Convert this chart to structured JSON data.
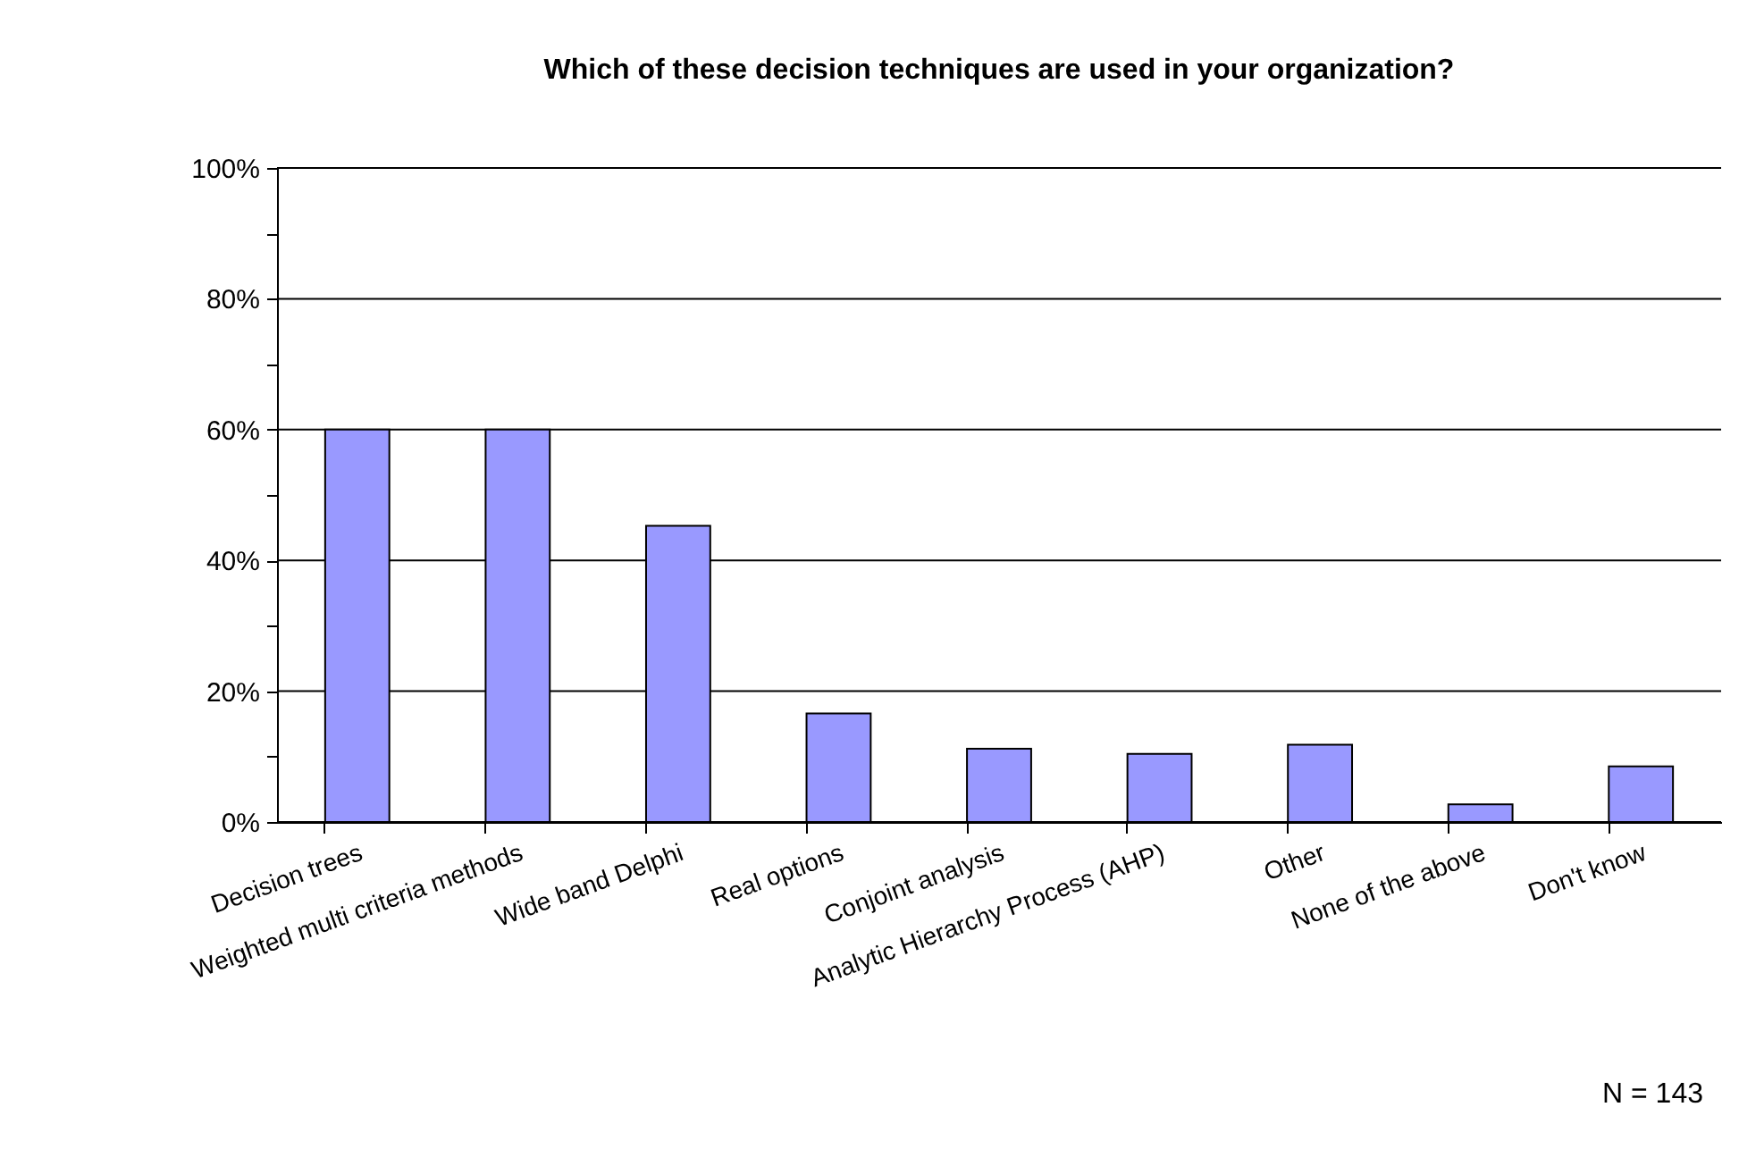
{
  "chart_data": {
    "type": "bar",
    "title": "Which of these decision techniques are used in your organization?",
    "categories": [
      "Decision trees",
      "Weighted multi criteria methods",
      "Wide band Delphi",
      "Real options",
      "Conjoint analysis",
      "Analytic Hierarchy Process (AHP)",
      "Other",
      "None of the above",
      "Don't know"
    ],
    "values": [
      60,
      60,
      45.3,
      16.6,
      11.2,
      10.4,
      11.8,
      2.7,
      8.5
    ],
    "color": "#9999ff",
    "ylim": [
      0,
      100
    ],
    "yticks": [
      {
        "value": 0,
        "label": "0%"
      },
      {
        "value": 10,
        "label": null
      },
      {
        "value": 20,
        "label": "20%"
      },
      {
        "value": 30,
        "label": null
      },
      {
        "value": 40,
        "label": "40%"
      },
      {
        "value": 50,
        "label": null
      },
      {
        "value": 60,
        "label": "60%"
      },
      {
        "value": 70,
        "label": null
      },
      {
        "value": 80,
        "label": "80%"
      },
      {
        "value": 90,
        "label": null
      },
      {
        "value": 100,
        "label": "100%"
      }
    ],
    "grid": "y",
    "annotations": [
      "N = 143"
    ]
  }
}
